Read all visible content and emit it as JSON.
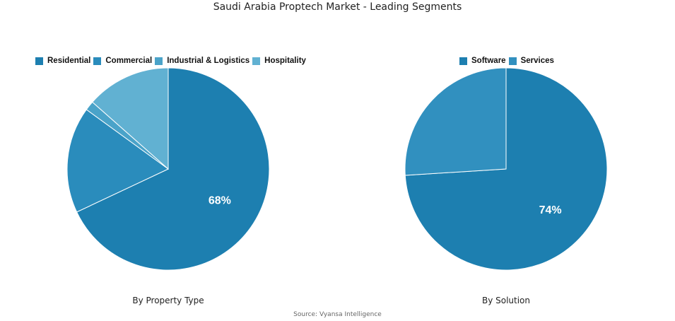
{
  "title": "Saudi Arabia Proptech Market - Leading Segments",
  "source": "Source: Vyansa Intelligence",
  "chart_data": [
    {
      "type": "pie",
      "caption": "By Property Type",
      "categories": [
        "Residential",
        "Commercial",
        "Industrial & Logistics",
        "Hospitality"
      ],
      "values": [
        68,
        17,
        1.5,
        13.5
      ],
      "colors": [
        "#1d7fb0",
        "#2a8cbc",
        "#4aa3c9",
        "#61b1d2"
      ],
      "data_labels": [
        "68%",
        "",
        "",
        ""
      ],
      "legend_position": "top"
    },
    {
      "type": "pie",
      "caption": "By Solution",
      "categories": [
        "Software",
        "Services"
      ],
      "values": [
        74,
        26
      ],
      "colors": [
        "#1d7fb0",
        "#3190bf"
      ],
      "data_labels": [
        "74%",
        ""
      ],
      "legend_position": "top"
    }
  ]
}
